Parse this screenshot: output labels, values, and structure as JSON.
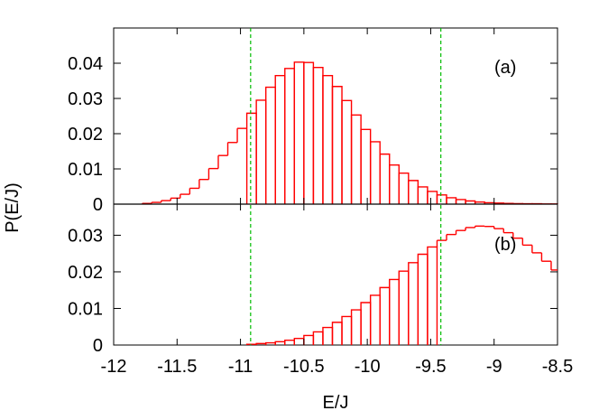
{
  "chart_data": [
    {
      "type": "bar",
      "panel_label": "(a)",
      "bin_width": 0.075,
      "xlim": [
        -12,
        -8.5
      ],
      "ylim": [
        0,
        0.05
      ],
      "y_ticks": [
        0,
        0.01,
        0.02,
        0.03,
        0.04
      ],
      "y_tick_labels": [
        "0",
        "0.01",
        "0.02",
        "0.03",
        "0.04"
      ],
      "series": [
        {
          "color": "#ff0000",
          "x_start": -12.0,
          "values": [
            0,
            0,
            0,
            0.0002,
            0.0005,
            0.001,
            0.0017,
            0.0028,
            0.0045,
            0.007,
            0.0101,
            0.0138,
            0.0175,
            0.0215,
            0.0258,
            0.0295,
            0.0332,
            0.0365,
            0.0385,
            0.0403,
            0.0402,
            0.0388,
            0.0365,
            0.0334,
            0.0294,
            0.0253,
            0.0212,
            0.0177,
            0.0142,
            0.0111,
            0.0088,
            0.0067,
            0.0049,
            0.0036,
            0.0026,
            0.0018,
            0.0013,
            0.0009,
            0.0006,
            0.0004,
            0.0003,
            0.0002,
            0.00015,
            0.0001,
            0.0001,
            5e-05,
            5e-05,
            0,
            0,
            0,
            0,
            0,
            0,
            0,
            0,
            0,
            0,
            0,
            0,
            0,
            0,
            0,
            0,
            0,
            0,
            0,
            0
          ]
        }
      ],
      "hatched_from_x": -10.92
    },
    {
      "type": "bar",
      "panel_label": "(b)",
      "bin_width": 0.075,
      "xlim": [
        -12,
        -8.5
      ],
      "ylim": [
        0,
        0.0385
      ],
      "y_ticks": [
        0,
        0.01,
        0.02,
        0.03
      ],
      "y_tick_labels": [
        "0",
        "0.01",
        "0.02",
        "0.03"
      ],
      "series": [
        {
          "color": "#ff0000",
          "x_start": -12.0,
          "values": [
            0,
            0,
            0,
            0,
            0,
            0,
            0,
            0,
            0,
            0,
            0,
            0,
            0,
            0,
            0.0002,
            0.0004,
            0.0006,
            0.0009,
            0.0013,
            0.0018,
            0.0026,
            0.0036,
            0.0048,
            0.0062,
            0.0078,
            0.0096,
            0.0116,
            0.0136,
            0.0157,
            0.0179,
            0.0202,
            0.0225,
            0.0248,
            0.0268,
            0.0286,
            0.0302,
            0.0313,
            0.0321,
            0.0325,
            0.0324,
            0.0318,
            0.0307,
            0.0292,
            0.0273,
            0.0252,
            0.0229,
            0.0205,
            0.0181,
            0.0157,
            0.0134,
            0.0112,
            0.0092,
            0.0074,
            0.0058,
            0.0045,
            0.0034,
            0.0025,
            0.0018,
            0.0013,
            0.0009,
            0.0006,
            0.0004,
            0.0003,
            0.0002,
            0.0001,
            5e-05,
            0
          ]
        }
      ],
      "hatched_from_x": -10.92,
      "hatched_to_x": -9.42
    }
  ],
  "shared": {
    "ylabel": "P(E/J)",
    "xlabel": "E/J",
    "x_ticks": [
      -12,
      -11.5,
      -11,
      -10.5,
      -10,
      -9.5,
      -9,
      -8.5
    ],
    "x_tick_labels": [
      "-12",
      "-11.5",
      "-11",
      "-10.5",
      "-10",
      "-9.5",
      "-9",
      "-8.5"
    ],
    "vertical_lines_x": [
      -10.92,
      -9.42
    ],
    "vertical_line_color": "#00bb00",
    "zero_line_color": "#000000"
  }
}
